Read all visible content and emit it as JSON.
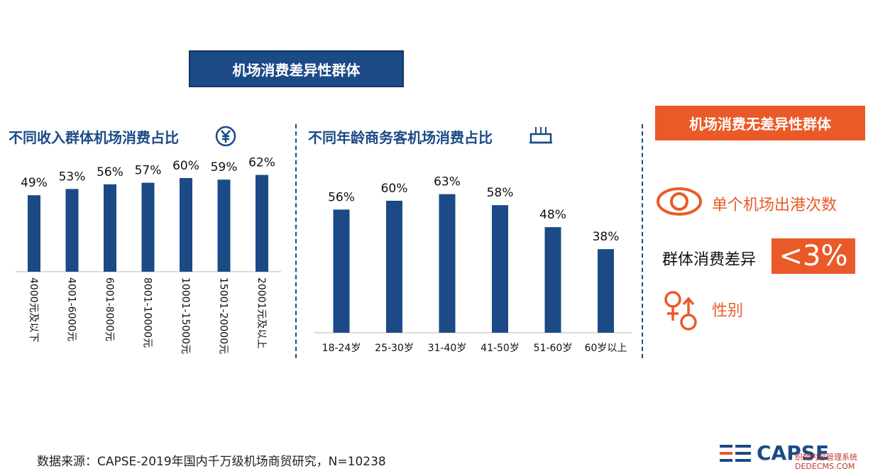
{
  "banner": "机场消费差异性群体",
  "chart_data": [
    {
      "type": "bar",
      "title": "不同收入群体机场消费占比",
      "categories": [
        "4000元及以下",
        "4001-6000元",
        "6001-8000元",
        "8001-10000元",
        "10001-15000元",
        "15001-20000元",
        "20001元及以上"
      ],
      "values": [
        49,
        53,
        56,
        57,
        60,
        59,
        62
      ],
      "value_labels": [
        "49%",
        "53%",
        "56%",
        "57%",
        "60%",
        "59%",
        "62%"
      ],
      "ylim": [
        0,
        100
      ],
      "color": "#1b4a86"
    },
    {
      "type": "bar",
      "title": "不同年龄商务客机场消费占比",
      "categories": [
        "18-24岁",
        "25-30岁",
        "31-40岁",
        "41-50岁",
        "51-60岁",
        "60岁以上"
      ],
      "values": [
        56,
        60,
        63,
        58,
        48,
        38
      ],
      "value_labels": [
        "56%",
        "60%",
        "63%",
        "58%",
        "48%",
        "38%"
      ],
      "ylim": [
        0,
        100
      ],
      "color": "#1b4a86"
    }
  ],
  "side": {
    "box_title": "机场消费无差异性群体",
    "item1": "单个机场出港次数",
    "diff_label": "群体消费差异",
    "diff_value": "<3%",
    "item2": "性别",
    "accent": "#ea5a28"
  },
  "source": "数据来源：CAPSE-2019年国内千万级机场商贸研究，N=10238",
  "logo": "CAPSE",
  "watermark": [
    "织梦内容管理系统",
    "DEDECMS.COM"
  ]
}
